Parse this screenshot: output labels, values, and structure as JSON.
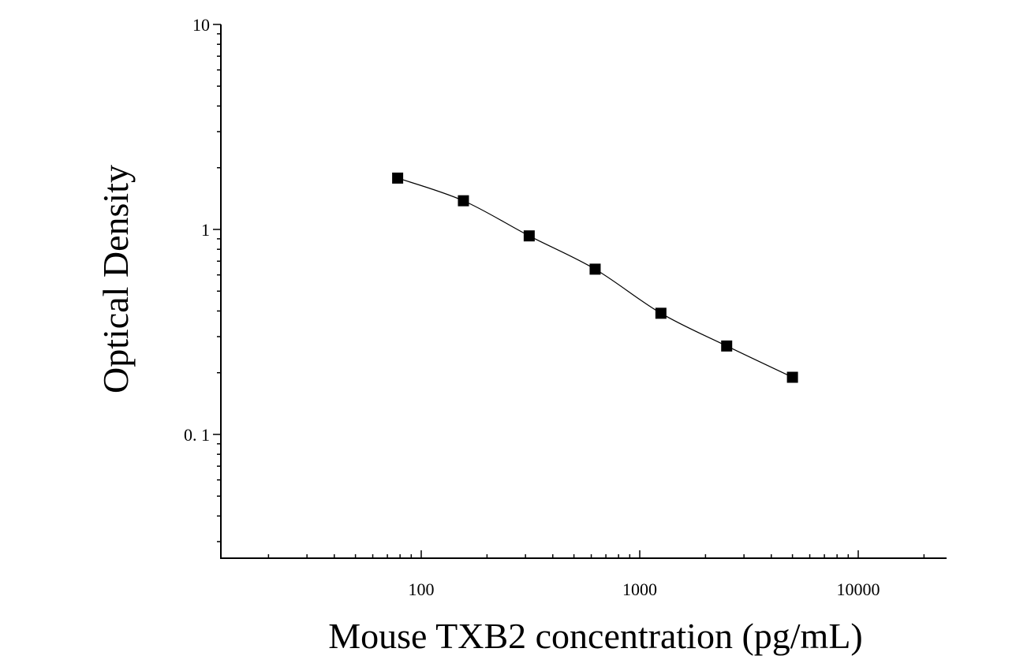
{
  "chart_data": {
    "type": "scatter",
    "title": "",
    "xlabel": "Mouse TXB2 concentration (pg/mL)",
    "ylabel": "Optical Density",
    "x_scale": "log",
    "y_scale": "log",
    "xlim": [
      12,
      25000
    ],
    "ylim": [
      0.025,
      10
    ],
    "x_ticks": [
      {
        "value": 100,
        "label": "100"
      },
      {
        "value": 1000,
        "label": "1000"
      },
      {
        "value": 10000,
        "label": "10000"
      }
    ],
    "y_ticks": [
      {
        "value": 10,
        "label": "10"
      },
      {
        "value": 1,
        "label": "1"
      },
      {
        "value": 0.1,
        "label": "0. 1"
      }
    ],
    "grid": false,
    "series": [
      {
        "x": [
          78,
          156,
          312,
          625,
          1250,
          2500,
          5000
        ],
        "y": [
          1.78,
          1.38,
          0.93,
          0.64,
          0.39,
          0.27,
          0.19
        ],
        "marker": "square",
        "color": "#000000",
        "fit": "smooth curve"
      }
    ]
  }
}
